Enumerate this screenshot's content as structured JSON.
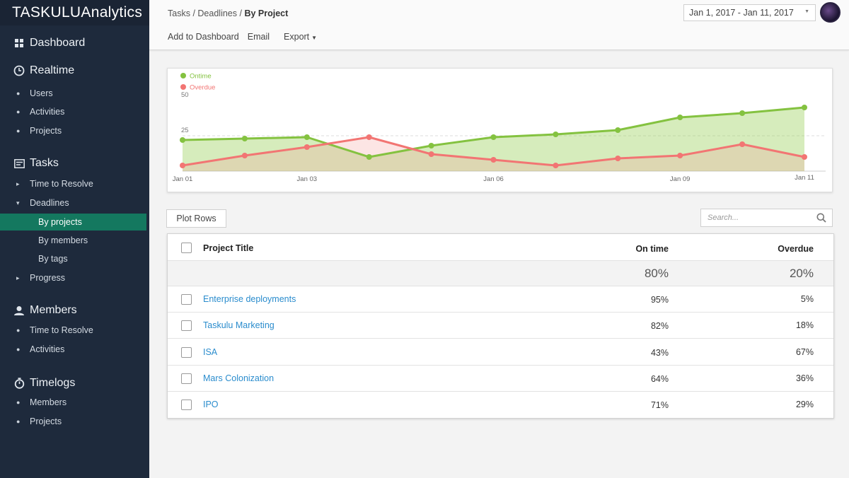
{
  "brand": {
    "prefix": "TASKULU",
    "suffix": "Analytics"
  },
  "sidebar": {
    "sections": {
      "dashboard": "Dashboard",
      "realtime": "Realtime",
      "tasks": "Tasks",
      "members": "Members",
      "timelogs": "Timelogs"
    },
    "realtime_items": [
      "Users",
      "Activities",
      "Projects"
    ],
    "tasks_items": {
      "time_to_resolve": "Time to Resolve",
      "deadlines": "Deadlines",
      "by_projects": "By projects",
      "by_members": "By members",
      "by_tags": "By tags",
      "progress": "Progress"
    },
    "members_items": [
      "Time to Resolve",
      "Activities"
    ],
    "timelogs_items": [
      "Members",
      "Projects"
    ]
  },
  "breadcrumb": {
    "part1": "Tasks",
    "sep": "/",
    "part2": "Deadlines",
    "current": "By Project"
  },
  "menu": {
    "add": "Add to Dashboard",
    "email": "Email",
    "export": "Export"
  },
  "date_range": "Jan 1, 2017 - Jan 11, 2017",
  "chart_data": {
    "type": "area",
    "x": [
      "Jan 01",
      "Jan 02",
      "Jan 03",
      "Jan 04",
      "Jan 05",
      "Jan 06",
      "Jan 07",
      "Jan 08",
      "Jan 09",
      "Jan 10",
      "Jan 11"
    ],
    "x_tick_labels": [
      "Jan 01",
      "Jan 03",
      "Jan 06",
      "Jan 09",
      "Jan 11"
    ],
    "y_tick_labels": [
      "50",
      "25"
    ],
    "series": [
      {
        "name": "Ontime",
        "color": "#84c240",
        "values": [
          22,
          23,
          24,
          10,
          18,
          24,
          26,
          29,
          38,
          41,
          45
        ]
      },
      {
        "name": "Overdue",
        "color": "#f27573",
        "values": [
          4,
          11,
          17,
          24,
          12,
          8,
          4,
          9,
          11,
          19,
          10
        ]
      }
    ],
    "ylim": [
      0,
      50
    ],
    "legend": "top-left",
    "grid": "dashed line at 25"
  },
  "controls": {
    "plot_rows": "Plot Rows",
    "search_placeholder": "Search..."
  },
  "table": {
    "headers": {
      "title": "Project Title",
      "on_time": "On time",
      "overdue": "Overdue"
    },
    "summary": {
      "on_time": "80%",
      "overdue": "20%"
    },
    "rows": [
      {
        "title": "Enterprise deployments",
        "on_time": "95%",
        "overdue": "5%"
      },
      {
        "title": "Taskulu Marketing",
        "on_time": "82%",
        "overdue": "18%"
      },
      {
        "title": "ISA",
        "on_time": "43%",
        "overdue": "67%"
      },
      {
        "title": "Mars Colonization",
        "on_time": "64%",
        "overdue": "36%"
      },
      {
        "title": "IPO",
        "on_time": "71%",
        "overdue": "29%"
      }
    ]
  }
}
